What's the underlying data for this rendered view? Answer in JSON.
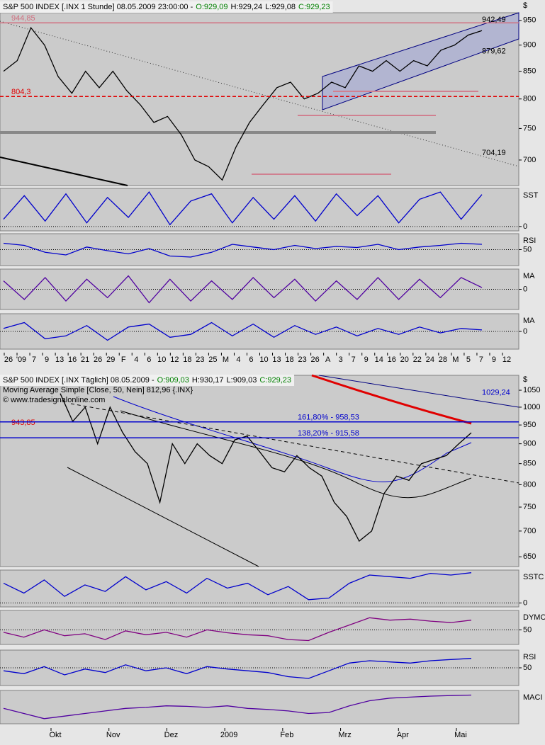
{
  "chart_data": [
    {
      "type": "line",
      "currency_label": "$",
      "header": [
        {
          "text": "S&P 500 INDEX [.INX 1 Stunde] 08.05.2009 23:00:00 -",
          "color": "#000000"
        },
        {
          "text": "O:929,09",
          "color": "#008000"
        },
        {
          "text": "H:929,24",
          "color": "#000000"
        },
        {
          "text": "L:929,08",
          "color": "#000000"
        },
        {
          "text": "C:929,23",
          "color": "#008000"
        }
      ],
      "values": [
        850,
        870,
        935,
        900,
        840,
        810,
        850,
        820,
        850,
        815,
        790,
        760,
        770,
        740,
        700,
        690,
        670,
        720,
        760,
        790,
        820,
        830,
        800,
        810,
        830,
        820,
        860,
        850,
        870,
        850,
        870,
        860,
        890,
        900,
        920,
        929
      ],
      "color": "#000000",
      "log_scale": true,
      "ylim": [
        662,
        966
      ],
      "yticks": [
        700,
        750,
        800,
        850,
        900,
        950
      ],
      "levels": [
        {
          "value": 944.85,
          "label": "944,85",
          "color": "#d07080",
          "side": "left",
          "line": true
        },
        {
          "value": 804.3,
          "label": "804,3",
          "color": "#e00000",
          "side": "left",
          "line": true
        },
        {
          "value": 942.49,
          "label": "942,49",
          "color": "#000000",
          "side": "right",
          "line": false
        },
        {
          "value": 879.62,
          "label": "879,62",
          "color": "#000000",
          "side": "right",
          "line": false
        },
        {
          "value": 704.19,
          "label": "704,19",
          "color": "#000000",
          "side": "right",
          "line": false
        }
      ],
      "xtick_labels": [
        "26",
        "'09",
        "7",
        "9",
        "13",
        "16",
        "21",
        "26",
        "29",
        "F",
        "4",
        "6",
        "10",
        "12",
        "18",
        "23",
        "25",
        "M",
        "4",
        "6",
        "10",
        "13",
        "18",
        "23",
        "26",
        "A",
        "3",
        "7",
        "9",
        "14",
        "16",
        "20",
        "22",
        "24",
        "28",
        "M",
        "5",
        "7",
        "9",
        "12"
      ]
    },
    {
      "type": "line",
      "panel_label": "SST",
      "values": [
        20,
        85,
        15,
        90,
        10,
        80,
        25,
        95,
        5,
        70,
        90,
        10,
        80,
        20,
        85,
        15,
        90,
        30,
        85,
        10,
        75,
        95,
        20,
        88
      ],
      "color": "#0000cc",
      "ylim": [
        -12,
        105
      ],
      "yticks": [
        0
      ]
    },
    {
      "type": "line",
      "panel_label": "RSI",
      "values": [
        62,
        58,
        45,
        40,
        55,
        48,
        42,
        52,
        38,
        36,
        45,
        60,
        55,
        50,
        58,
        52,
        56,
        54,
        60,
        50,
        55,
        58,
        62,
        60
      ],
      "color": "#0000cc",
      "ylim": [
        20,
        80
      ],
      "yticks": [
        50
      ]
    },
    {
      "type": "line",
      "panel_label": "MA",
      "values": [
        5,
        -6,
        7,
        -7,
        6,
        -5,
        8,
        -8,
        6,
        -7,
        5,
        -6,
        7,
        -5,
        6,
        -7,
        5,
        -6,
        7,
        -6,
        6,
        -5,
        7,
        1
      ],
      "color": "#5000a0",
      "ylim": [
        -12,
        12
      ],
      "yticks": [
        0
      ]
    },
    {
      "type": "line",
      "panel_label": "MA",
      "values": [
        2,
        6,
        -5,
        -3,
        4,
        -6,
        3,
        5,
        -4,
        -2,
        6,
        -3,
        5,
        -4,
        4,
        -2,
        3,
        -3,
        2,
        -2,
        3,
        -1,
        2,
        1
      ],
      "color": "#0000cc",
      "ylim": [
        -12,
        12
      ],
      "yticks": [
        0
      ]
    },
    {
      "type": "line",
      "currency_label": "$",
      "header": [
        {
          "text": "S&P 500 INDEX [.INX Täglich] 08.05.2009 -",
          "color": "#000000"
        },
        {
          "text": "O:909,03",
          "color": "#008000"
        },
        {
          "text": "H:930,17",
          "color": "#000000"
        },
        {
          "text": "L:909,03",
          "color": "#000000"
        },
        {
          "text": "C:929,23",
          "color": "#008000"
        }
      ],
      "subtitles": [
        "Moving Average Simple [Close, 50, Nein] 812,96 {.INX}",
        "© www.tradesignalonline.com"
      ],
      "values": [
        1040,
        960,
        1000,
        900,
        1000,
        930,
        880,
        850,
        760,
        900,
        850,
        900,
        870,
        850,
        910,
        920,
        880,
        840,
        830,
        870,
        840,
        820,
        760,
        730,
        680,
        700,
        780,
        820,
        810,
        850,
        860,
        870,
        900,
        929
      ],
      "color": "#000000",
      "log_scale": true,
      "ylim": [
        632,
        1096
      ],
      "yticks": [
        650,
        700,
        750,
        800,
        850,
        900,
        950,
        1000,
        1050
      ],
      "levels": [
        {
          "value": 943.85,
          "label": "943,85",
          "color": "#e00000",
          "side": "left",
          "line": false
        },
        {
          "value": 958.53,
          "label": "161,80% - 958,53",
          "color": "#0000cc",
          "side": "mid",
          "line": true
        },
        {
          "value": 915.58,
          "label": "138,20% - 915,58",
          "color": "#0000cc",
          "side": "mid",
          "line": true
        },
        {
          "value": 1029.24,
          "label": "1029,24",
          "color": "#0000cc",
          "side": "right",
          "line": false
        }
      ],
      "xtick_labels": [
        "Okt",
        "Nov",
        "Dez",
        "2009",
        "Feb",
        "Mrz",
        "Apr",
        "Mai"
      ]
    },
    {
      "type": "line",
      "panel_label": "SSTC",
      "values": [
        60,
        30,
        70,
        20,
        55,
        35,
        80,
        40,
        65,
        30,
        75,
        45,
        60,
        25,
        50,
        10,
        15,
        60,
        85,
        80,
        75,
        90,
        85,
        92
      ],
      "color": "#0000cc",
      "ylim": [
        -12,
        100
      ],
      "yticks": [
        0
      ]
    },
    {
      "type": "line",
      "panel_label": "DYMC",
      "values": [
        45,
        35,
        50,
        38,
        42,
        30,
        48,
        40,
        45,
        35,
        50,
        44,
        40,
        38,
        30,
        28,
        45,
        60,
        75,
        70,
        72,
        68,
        65,
        70
      ],
      "color": "#800080",
      "ylim": [
        20,
        90
      ],
      "yticks": [
        50
      ]
    },
    {
      "type": "line",
      "panel_label": "RSI",
      "values": [
        45,
        40,
        52,
        38,
        48,
        42,
        55,
        45,
        50,
        40,
        52,
        48,
        45,
        42,
        35,
        32,
        45,
        58,
        62,
        60,
        58,
        62,
        64,
        66
      ],
      "color": "#0000cc",
      "ylim": [
        20,
        80
      ],
      "yticks": [
        50
      ]
    },
    {
      "type": "line",
      "panel_label": "MACI",
      "values": [
        -10,
        -20,
        -30,
        -25,
        -20,
        -15,
        -10,
        -8,
        -5,
        -6,
        -8,
        -5,
        -10,
        -12,
        -15,
        -20,
        -18,
        -5,
        5,
        10,
        12,
        14,
        15,
        16
      ],
      "color": "#5000a0",
      "ylim": [
        -40,
        25
      ]
    }
  ]
}
